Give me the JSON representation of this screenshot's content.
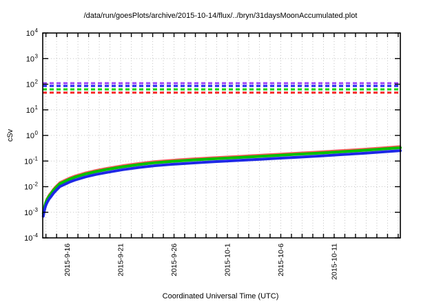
{
  "chart_data": {
    "type": "line",
    "title": "/data/run/goesPlots/archive/2015-10-14/flux/../bryn/31daysMoonAccumulated.plot",
    "xlabel": "Coordinated Universal Time (UTC)",
    "ylabel": "cSv",
    "y_scale": "log",
    "ylim": [
      0.0001,
      10000
    ],
    "ylim_exponents": [
      -4,
      4
    ],
    "y_tick_exponents": [
      4,
      3,
      2,
      1,
      0,
      -1,
      -2,
      -3,
      -4
    ],
    "y_grid_exponents": [
      3,
      2,
      1,
      0,
      -1,
      -2,
      -3
    ],
    "x_span_days": 33.5,
    "x_ticks": [
      {
        "label": "2015-9-16",
        "day": 2.3
      },
      {
        "label": "2015-9-21",
        "day": 7.3
      },
      {
        "label": "2015-9-26",
        "day": 12.3
      },
      {
        "label": "2015-10-1",
        "day": 17.3
      },
      {
        "label": "2015-10-6",
        "day": 22.3
      },
      {
        "label": "2015-10-11",
        "day": 27.3
      }
    ],
    "x_minor": {
      "start_day": 0.3,
      "step_days": 1
    },
    "grid": {
      "color": "#c4c4c4",
      "style": "dotted",
      "on": true
    },
    "border_color": "#000000",
    "legend": "none",
    "threshold_lines": [
      {
        "name": "purple-limit-line",
        "value_cSv": 110,
        "color": "#a048f8",
        "style": "dashed"
      },
      {
        "name": "blue-limit-line",
        "value_cSv": 86,
        "color": "#2424f0",
        "style": "dashed"
      },
      {
        "name": "green-limit-line",
        "value_cSv": 63,
        "color": "#00d400",
        "style": "dashed"
      },
      {
        "name": "red-limit-line",
        "value_cSv": 47,
        "color": "#f82828",
        "style": "dashed"
      }
    ],
    "series_days": [
      0.05,
      0.1,
      0.2,
      0.3,
      0.45,
      0.6,
      0.8,
      1,
      1.3,
      1.6,
      2,
      2.5,
      3,
      4,
      5,
      6,
      7.5,
      9,
      10.5,
      12,
      14,
      16,
      18,
      20,
      22,
      24,
      26,
      28,
      30,
      31.7,
      33.5
    ],
    "series": [
      {
        "name": "red-accumulated-dose",
        "color": "#ff5858",
        "width": 2.5,
        "values": [
          0.0011,
          0.0014,
          0.0021,
          0.0029,
          0.0039,
          0.005,
          0.0063,
          0.0083,
          0.0113,
          0.015,
          0.018,
          0.0225,
          0.027,
          0.036,
          0.045,
          0.054,
          0.069,
          0.084,
          0.099,
          0.111,
          0.126,
          0.141,
          0.156,
          0.1725,
          0.192,
          0.213,
          0.237,
          0.267,
          0.3,
          0.3375,
          0.3825
        ]
      },
      {
        "name": "green-accumulated-dose",
        "color": "#00c000",
        "width": 4,
        "values": [
          0.0009,
          0.0012,
          0.0018,
          0.0025,
          0.0034,
          0.0043,
          0.0055,
          0.0072,
          0.0098,
          0.013,
          0.0156,
          0.0195,
          0.0234,
          0.0312,
          0.039,
          0.0468,
          0.0598,
          0.0728,
          0.0858,
          0.0962,
          0.1092,
          0.1222,
          0.1352,
          0.1495,
          0.1664,
          0.1846,
          0.2054,
          0.2314,
          0.26,
          0.2925,
          0.3315
        ]
      },
      {
        "name": "blue-accumulated-dose",
        "color": "#1e28e6",
        "width": 4,
        "values": [
          0.0007,
          0.0009,
          0.0014,
          0.0019,
          0.0026,
          0.0033,
          0.0042,
          0.0055,
          0.0075,
          0.01,
          0.012,
          0.015,
          0.018,
          0.024,
          0.03,
          0.036,
          0.046,
          0.056,
          0.066,
          0.074,
          0.084,
          0.094,
          0.104,
          0.115,
          0.128,
          0.142,
          0.158,
          0.178,
          0.2,
          0.225,
          0.255
        ]
      }
    ]
  }
}
